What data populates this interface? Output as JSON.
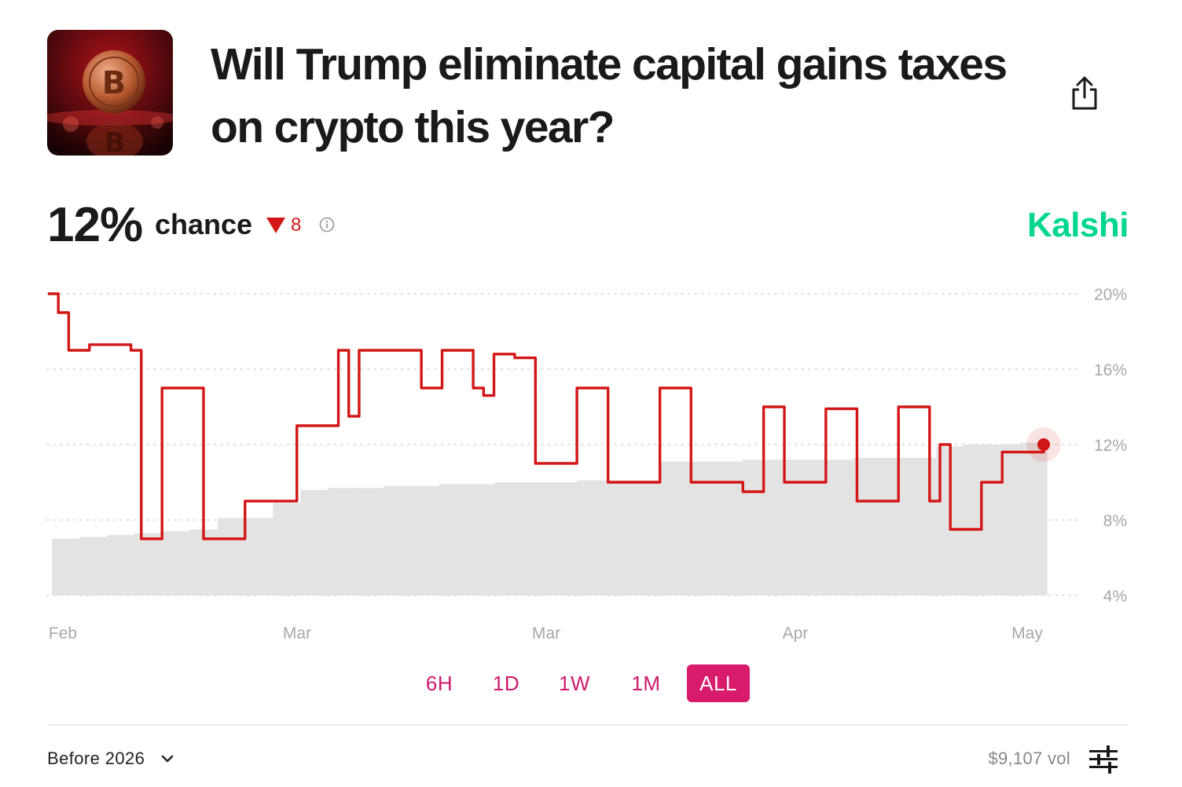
{
  "market": {
    "title": "Will Trump eliminate capital gains taxes on crypto this year?",
    "image": "bitcoin-coin-red-thumbnail"
  },
  "odds": {
    "percent": "12%",
    "label": "chance",
    "delta": "8",
    "delta_direction": "down",
    "delta_color": "#d31616"
  },
  "brand": {
    "name": "Kalshi",
    "color": "#00d68f"
  },
  "icons": {
    "share": "share-icon",
    "info": "info-icon",
    "chevron": "chevron-down-icon",
    "filters": "sliders-icon"
  },
  "chart_data": {
    "type": "line",
    "yticks": [
      "20%",
      "16%",
      "12%",
      "8%",
      "4%"
    ],
    "ylim": [
      4,
      20
    ],
    "xticks": [
      "Feb",
      "Mar",
      "Mar",
      "Apr",
      "May"
    ],
    "line_color": "#d31616",
    "volume_color": "#e3e3e3",
    "series": [
      {
        "values": [
          20,
          19,
          17,
          17,
          17.3,
          17.3,
          17.3,
          17.3,
          17,
          7,
          7,
          15,
          15,
          15,
          15,
          7,
          7,
          7,
          7,
          9,
          9,
          9,
          9,
          9,
          13,
          13,
          13,
          13,
          17,
          13.5,
          17,
          17,
          17,
          17,
          17,
          17,
          15,
          15,
          17,
          17,
          17,
          15,
          14.6,
          16.8,
          16.8,
          16.6,
          16.6,
          11,
          11,
          11,
          11,
          15,
          15,
          15,
          10,
          10,
          10,
          10,
          10,
          15,
          15,
          15,
          10,
          10,
          10,
          10,
          10,
          9.5,
          9.5,
          14,
          14,
          10,
          10,
          10,
          10,
          13.9,
          13.9,
          13.9,
          9,
          9,
          9,
          9,
          14,
          14,
          14,
          9,
          12,
          7.5,
          7.5,
          7.5,
          10,
          10,
          11.6,
          11.6,
          11.6,
          11.6,
          12
        ]
      }
    ],
    "volume": [
      7,
      7.1,
      7.2,
      7.3,
      7.4,
      7.5,
      8.1,
      8.1,
      8.9,
      9.6,
      9.7,
      9.7,
      9.8,
      9.8,
      9.9,
      9.9,
      10,
      10,
      10,
      10.1,
      10.1,
      10.1,
      11.1,
      11.1,
      11.1,
      11.2,
      11.2,
      11.2,
      11.2,
      11.3,
      11.3,
      11.3,
      11.9,
      12,
      12,
      12.1
    ],
    "last_value": 12
  },
  "ranges": [
    "6H",
    "1D",
    "1W",
    "1M",
    "ALL"
  ],
  "active_range": "ALL",
  "footer": {
    "period": "Before 2026",
    "volume": "$9,107 vol"
  }
}
